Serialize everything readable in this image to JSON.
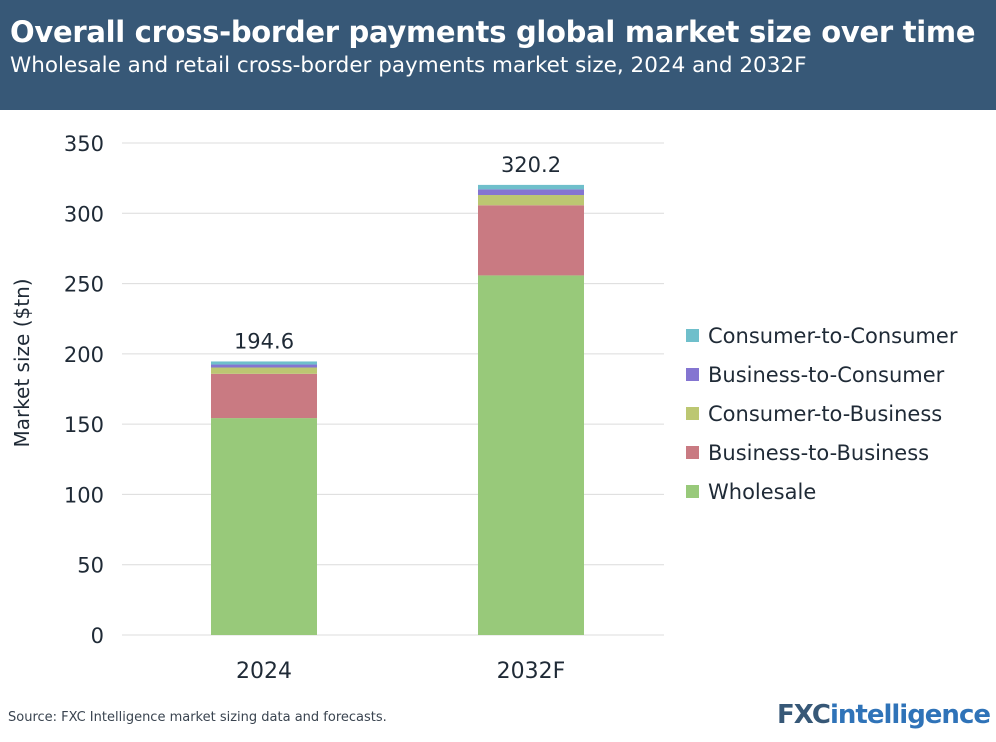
{
  "header": {
    "title": "Overall cross-border payments global market size over time",
    "subtitle": "Wholesale and retail cross-border payments market size, 2024 and 2032F"
  },
  "footer": {
    "source": "Source: FXC Intelligence market sizing data and forecasts.",
    "logo_a": "FXC",
    "logo_b": "intelligence"
  },
  "chart_data": {
    "type": "bar",
    "stacked": true,
    "categories": [
      "2024",
      "2032F"
    ],
    "series": [
      {
        "name": "Wholesale",
        "color": "#98c97a",
        "values": [
          154.3,
          255.8
        ]
      },
      {
        "name": "Business-to-Business",
        "color": "#c97a82",
        "values": [
          31.5,
          49.9
        ]
      },
      {
        "name": "Consumer-to-Business",
        "color": "#bcc772",
        "values": [
          4.5,
          7.3
        ]
      },
      {
        "name": "Business-to-Consumer",
        "color": "#8475d1",
        "values": [
          2.1,
          4.0
        ]
      },
      {
        "name": "Consumer-to-Consumer",
        "color": "#6fbfcb",
        "values": [
          2.2,
          3.2
        ]
      }
    ],
    "totals": [
      "194.6",
      "320.2"
    ],
    "ylabel": "Market size ($tn)",
    "ylim": [
      0,
      350
    ],
    "yticks": [
      0,
      50,
      100,
      150,
      200,
      250,
      300,
      350
    ],
    "grid": true,
    "legend_position": "right"
  }
}
